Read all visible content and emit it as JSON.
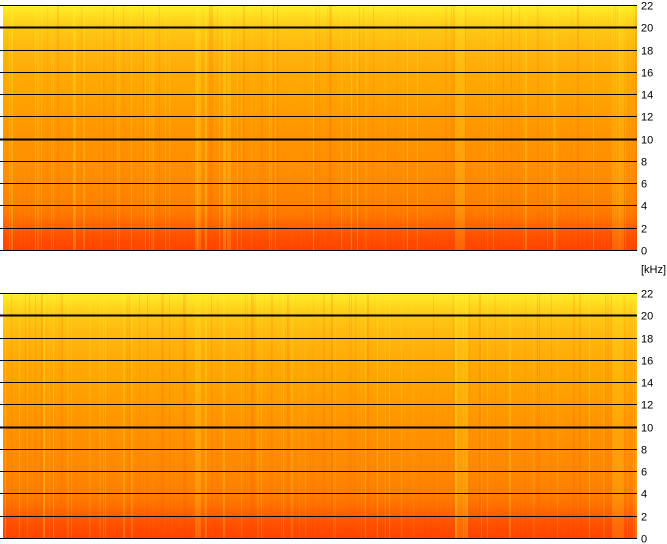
{
  "unit_label": "[kHz]",
  "colors": {
    "high_intensity": "#ff3a00",
    "mid_intensity": "#ff9900",
    "low_intensity": "#ffff33",
    "grid": "#000000",
    "background": "#ffffff"
  },
  "chart_data": [
    {
      "type": "heatmap",
      "title": "",
      "xlabel": "",
      "ylabel": "",
      "ylim": [
        0,
        22
      ],
      "y_ticks": [
        0,
        2,
        4,
        6,
        8,
        10,
        12,
        14,
        16,
        18,
        20,
        22
      ],
      "y_tick_labels": [
        "0",
        "2",
        "4",
        "6",
        "8",
        "10",
        "12",
        "14",
        "16",
        "18",
        "20",
        "22"
      ],
      "emphasized_gridlines": [
        10,
        20
      ],
      "grid": true,
      "colormap": [
        "#ff3a00",
        "#ff9900",
        "#ffff33"
      ],
      "intensity_profile": {
        "frequencies_khz": [
          0,
          1,
          2,
          3,
          4,
          6,
          8,
          10,
          12,
          14,
          16,
          18,
          20,
          21,
          22
        ],
        "relative_level": [
          1.0,
          0.95,
          0.85,
          0.72,
          0.66,
          0.6,
          0.57,
          0.55,
          0.5,
          0.46,
          0.42,
          0.36,
          0.26,
          0.16,
          0.05
        ]
      }
    },
    {
      "type": "heatmap",
      "title": "",
      "xlabel": "",
      "ylabel": "",
      "ylim": [
        0,
        22
      ],
      "y_ticks": [
        0,
        2,
        4,
        6,
        8,
        10,
        12,
        14,
        16,
        18,
        20,
        22
      ],
      "y_tick_labels": [
        "0",
        "2",
        "4",
        "6",
        "8",
        "10",
        "12",
        "14",
        "16",
        "18",
        "20",
        "22"
      ],
      "emphasized_gridlines": [
        10,
        20
      ],
      "grid": true,
      "colormap": [
        "#ff3a00",
        "#ff9900",
        "#ffff33"
      ],
      "intensity_profile": {
        "frequencies_khz": [
          0,
          1,
          2,
          3,
          4,
          6,
          8,
          10,
          12,
          14,
          16,
          18,
          20,
          21,
          22
        ],
        "relative_level": [
          1.0,
          0.95,
          0.86,
          0.74,
          0.67,
          0.61,
          0.58,
          0.55,
          0.5,
          0.46,
          0.42,
          0.36,
          0.27,
          0.17,
          0.05
        ]
      }
    }
  ]
}
